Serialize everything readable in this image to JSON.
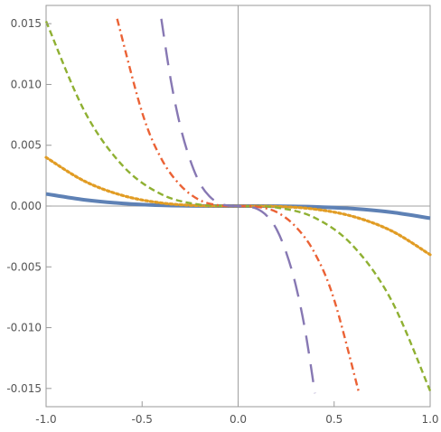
{
  "chart_data": {
    "type": "line",
    "title": "",
    "xlabel": "",
    "ylabel": "",
    "xlim": [
      -1.0,
      1.0
    ],
    "ylim": [
      -0.0165,
      0.0165
    ],
    "grid": false,
    "axes_through_origin": true,
    "x_ticks": [
      {
        "value": -1.0,
        "label": "-1.0"
      },
      {
        "value": -0.5,
        "label": "-0.5"
      },
      {
        "value": 0.0,
        "label": "0.0"
      },
      {
        "value": 0.5,
        "label": "0.5"
      },
      {
        "value": 1.0,
        "label": "1.0"
      }
    ],
    "y_ticks": [
      {
        "value": 0.015,
        "label": "0.015"
      },
      {
        "value": 0.01,
        "label": "0.010"
      },
      {
        "value": 0.005,
        "label": "0.005"
      },
      {
        "value": 0.0,
        "label": "0.000"
      },
      {
        "value": -0.005,
        "label": "-0.005"
      },
      {
        "value": -0.01,
        "label": "-0.010"
      },
      {
        "value": -0.015,
        "label": "-0.015"
      }
    ],
    "series": [
      {
        "color": "#5E81B5",
        "style": "solid",
        "x": [
          -1.0,
          -0.8,
          -0.6,
          -0.4,
          -0.2,
          0.0,
          0.2,
          0.4,
          0.6,
          0.8,
          1.0
        ],
        "y": [
          0.001,
          0.000512,
          0.000216,
          6.4e-05,
          8e-06,
          0.0,
          -8e-06,
          -6.4e-05,
          -0.000216,
          -0.000512,
          -0.001
        ]
      },
      {
        "color": "#E19C24",
        "style": "dotted",
        "x": [
          -1.0,
          -0.8,
          -0.6,
          -0.4,
          -0.2,
          0.0,
          0.2,
          0.4,
          0.6,
          0.8,
          1.0
        ],
        "y": [
          0.004,
          0.002048,
          0.000864,
          0.000256,
          3.2e-05,
          0.0,
          -3.2e-05,
          -0.000256,
          -0.000864,
          -0.002048,
          -0.004
        ]
      },
      {
        "color": "#8FB032",
        "style": "dashed",
        "x": [
          -1.0,
          -0.8,
          -0.6,
          -0.4,
          -0.2,
          0.0,
          0.2,
          0.4,
          0.6,
          0.8,
          1.0
        ],
        "y": [
          0.0152,
          0.0078,
          0.0033,
          0.00097,
          0.00012,
          0.0,
          -0.00012,
          -0.00097,
          -0.0033,
          -0.0078,
          -0.0152
        ]
      },
      {
        "color": "#EB6235",
        "style": "dash-dot",
        "x": [
          -0.63,
          -0.5,
          -0.4,
          -0.3,
          -0.2,
          -0.1,
          0.0,
          0.1,
          0.2,
          0.3,
          0.4,
          0.5,
          0.63
        ],
        "y": [
          0.0154,
          0.0077,
          0.0039,
          0.0017,
          0.00049,
          6e-05,
          0.0,
          -6e-05,
          -0.00049,
          -0.0017,
          -0.0039,
          -0.0077,
          -0.0154
        ]
      },
      {
        "color": "#8778B3",
        "style": "long-dashed",
        "x": [
          -0.4,
          -0.35,
          -0.3,
          -0.25,
          -0.2,
          -0.15,
          -0.1,
          -0.05,
          0.0,
          0.05,
          0.1,
          0.15,
          0.2,
          0.25,
          0.3,
          0.35,
          0.4
        ],
        "y": [
          0.0154,
          0.0103,
          0.0065,
          0.0038,
          0.0019,
          0.00081,
          0.00024,
          3e-05,
          0.0,
          -3e-05,
          -0.00024,
          -0.00081,
          -0.0019,
          -0.0038,
          -0.0065,
          -0.0103,
          -0.0154
        ]
      }
    ]
  }
}
